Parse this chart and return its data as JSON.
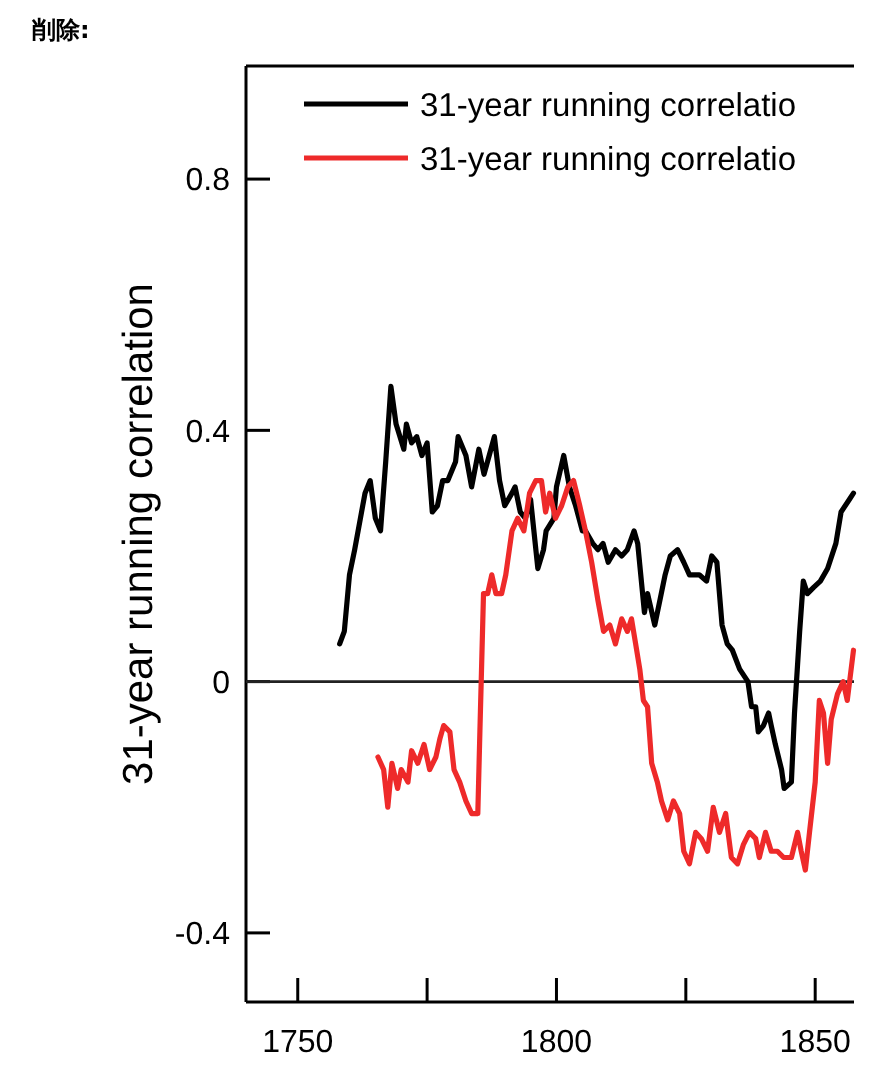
{
  "chart_data": {
    "type": "line",
    "ylabel": "31-year running correlation",
    "annotations": [
      "削除:"
    ],
    "xlim": [
      1740,
      1857.5
    ],
    "ylim": [
      -0.51,
      0.98
    ],
    "xticks": [
      1750,
      {
        "value": 1775,
        "label": null
      },
      1800,
      {
        "value": 1825,
        "label": null
      },
      1850
    ],
    "yticks": [
      -0.4,
      0,
      0.4,
      0.8
    ],
    "grid": false,
    "legend": "top right",
    "line_style": "solid",
    "marker": "none",
    "ref_lines": [
      {
        "axis": "y",
        "value": 0,
        "color": "#222222"
      }
    ],
    "series": [
      {
        "name": "31-year running correlatio",
        "color": "#000000",
        "x": [
          1758.1,
          1759,
          1760,
          1761,
          1763,
          1764,
          1765,
          1766,
          1767,
          1768,
          1769,
          1770.5,
          1771,
          1772,
          1773,
          1774,
          1775,
          1776,
          1777,
          1778,
          1779,
          1780.5,
          1781,
          1782.5,
          1783.6,
          1785,
          1786,
          1787,
          1788,
          1789,
          1790,
          1791.4,
          1792,
          1793,
          1794,
          1795,
          1796.4,
          1797.5,
          1798,
          1799.5,
          1800,
          1801.4,
          1802.5,
          1803.7,
          1805,
          1805.6,
          1807,
          1808,
          1809,
          1810,
          1811.4,
          1812.6,
          1813.7,
          1815,
          1815.7,
          1817,
          1817.6,
          1819,
          1820,
          1821,
          1822,
          1823.4,
          1824.6,
          1825.7,
          1827,
          1827.6,
          1829,
          1830,
          1831,
          1832,
          1833,
          1834,
          1835.4,
          1837,
          1837.7,
          1838.5,
          1839,
          1840,
          1841,
          1841.5,
          1842.3,
          1843.5,
          1844,
          1845.4,
          1846,
          1847,
          1847.7,
          1848.5,
          1849.7,
          1851,
          1852.4,
          1854,
          1855,
          1856.6,
          1857.4
        ],
        "values": [
          0.06,
          0.08,
          0.17,
          0.21,
          0.3,
          0.32,
          0.26,
          0.24,
          0.35,
          0.47,
          0.41,
          0.37,
          0.41,
          0.38,
          0.39,
          0.36,
          0.38,
          0.27,
          0.28,
          0.32,
          0.32,
          0.35,
          0.39,
          0.36,
          0.31,
          0.37,
          0.33,
          0.36,
          0.39,
          0.32,
          0.28,
          0.3,
          0.31,
          0.27,
          0.26,
          0.29,
          0.18,
          0.21,
          0.24,
          0.26,
          0.31,
          0.36,
          0.31,
          0.28,
          0.24,
          0.24,
          0.22,
          0.21,
          0.22,
          0.19,
          0.21,
          0.2,
          0.21,
          0.24,
          0.22,
          0.11,
          0.14,
          0.09,
          0.13,
          0.17,
          0.2,
          0.21,
          0.19,
          0.17,
          0.17,
          0.17,
          0.16,
          0.2,
          0.19,
          0.09,
          0.06,
          0.05,
          0.02,
          0.0,
          -0.04,
          -0.04,
          -0.08,
          -0.07,
          -0.05,
          -0.07,
          -0.1,
          -0.14,
          -0.17,
          -0.16,
          -0.05,
          0.08,
          0.16,
          0.14,
          0.15,
          0.16,
          0.18,
          0.22,
          0.27,
          0.29,
          0.3
        ]
      },
      {
        "name": "31-year running correlatio",
        "color": "#ee2a2a",
        "x": [
          1765.5,
          1766.6,
          1767.4,
          1768.2,
          1769.3,
          1770,
          1771.3,
          1772,
          1773.2,
          1774.4,
          1775.5,
          1776.7,
          1777.5,
          1778.2,
          1779.4,
          1780.2,
          1781.3,
          1782.5,
          1783.6,
          1784.8,
          1785.2,
          1785.9,
          1786.7,
          1787.5,
          1788.3,
          1789.4,
          1790.2,
          1791.4,
          1792.5,
          1793.7,
          1794.8,
          1796,
          1797.1,
          1797.9,
          1798.7,
          1799.8,
          1801,
          1802.2,
          1803.3,
          1804.5,
          1805.6,
          1806.8,
          1808,
          1809.1,
          1810.3,
          1811.4,
          1812.6,
          1813.7,
          1814.5,
          1815.3,
          1816.1,
          1816.8,
          1817.6,
          1818.4,
          1819.5,
          1820.3,
          1821.5,
          1822.6,
          1823.8,
          1824.6,
          1825.7,
          1826.9,
          1828,
          1829.2,
          1830.3,
          1831.5,
          1832.7,
          1833.8,
          1835,
          1836.1,
          1837.3,
          1838.5,
          1839.2,
          1840.4,
          1841.5,
          1842.7,
          1843.9,
          1845.4,
          1846.6,
          1847.3,
          1848.1,
          1848.9,
          1850,
          1850.8,
          1851.6,
          1852.4,
          1853.1,
          1854.3,
          1855.4,
          1856.2,
          1857.4
        ],
        "values": [
          -0.12,
          -0.14,
          -0.2,
          -0.13,
          -0.17,
          -0.14,
          -0.16,
          -0.11,
          -0.13,
          -0.1,
          -0.14,
          -0.12,
          -0.09,
          -0.07,
          -0.08,
          -0.14,
          -0.16,
          -0.19,
          -0.21,
          -0.21,
          -0.08,
          0.14,
          0.14,
          0.17,
          0.14,
          0.14,
          0.17,
          0.24,
          0.26,
          0.24,
          0.3,
          0.32,
          0.32,
          0.27,
          0.3,
          0.26,
          0.28,
          0.31,
          0.32,
          0.28,
          0.24,
          0.19,
          0.13,
          0.08,
          0.09,
          0.06,
          0.1,
          0.08,
          0.1,
          0.06,
          0.02,
          -0.03,
          -0.04,
          -0.13,
          -0.16,
          -0.19,
          -0.22,
          -0.19,
          -0.21,
          -0.27,
          -0.29,
          -0.24,
          -0.25,
          -0.27,
          -0.2,
          -0.24,
          -0.21,
          -0.28,
          -0.29,
          -0.26,
          -0.24,
          -0.25,
          -0.28,
          -0.24,
          -0.27,
          -0.27,
          -0.28,
          -0.28,
          -0.24,
          -0.27,
          -0.3,
          -0.24,
          -0.16,
          -0.03,
          -0.05,
          -0.13,
          -0.06,
          -0.02,
          0.0,
          -0.03,
          0.05
        ]
      }
    ]
  }
}
